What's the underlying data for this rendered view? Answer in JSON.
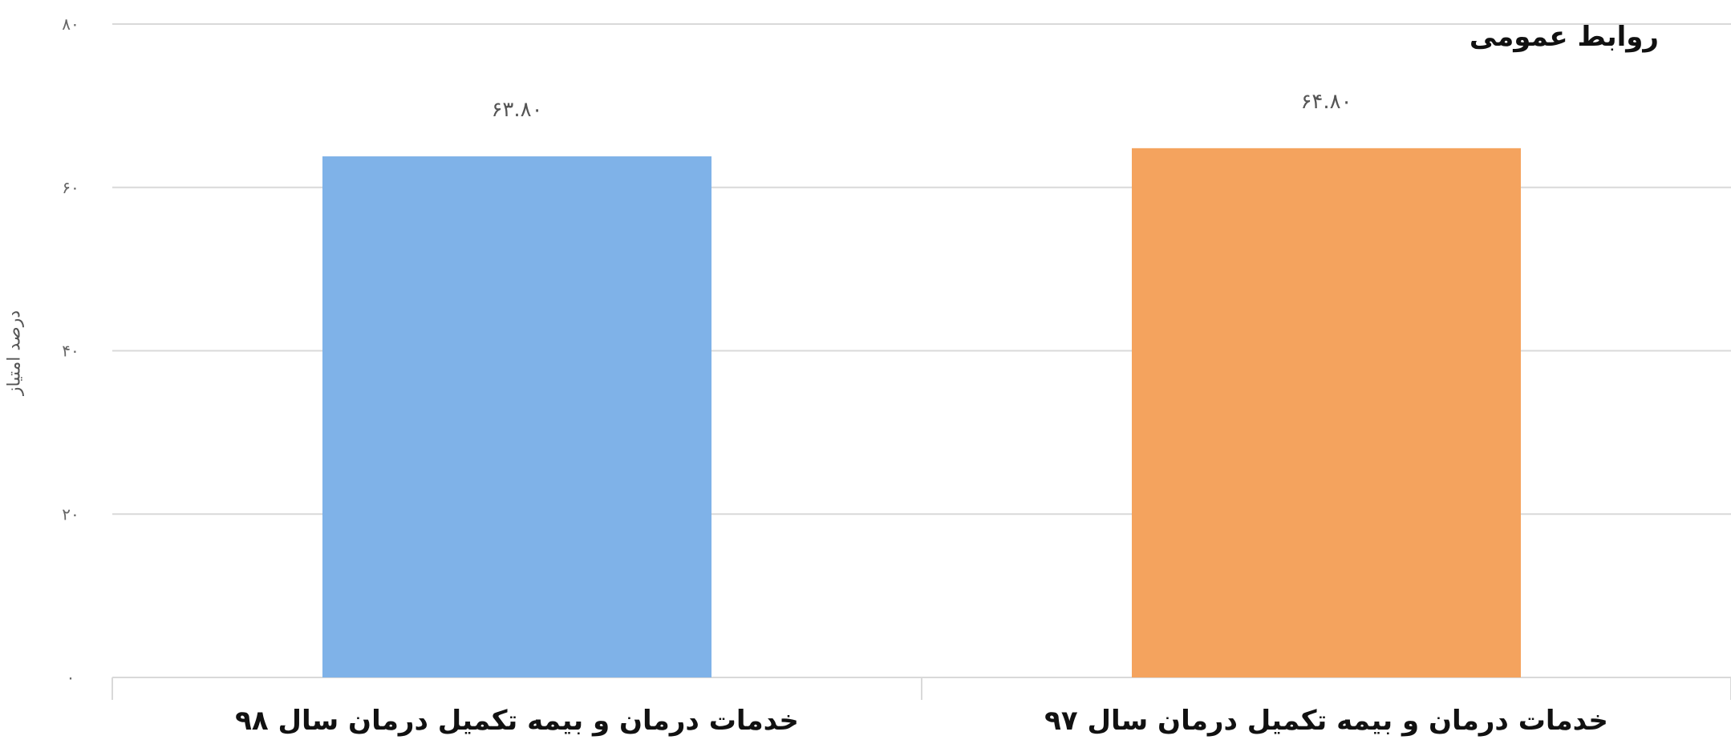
{
  "header": {
    "source": "روابط عمومی"
  },
  "chart_data": {
    "type": "bar",
    "categories": [
      "خدمات درمان و بیمه تکمیل درمان سال ۹۸",
      "خدمات درمان و بیمه تکمیل درمان سال ۹۷"
    ],
    "values": [
      63.8,
      64.8
    ],
    "value_labels": [
      "۶۳.۸۰",
      "۶۴.۸۰"
    ],
    "colors": [
      "#7fb2e8",
      "#f4a35e"
    ],
    "ylabel": "درصد امتیاز",
    "ylim": [
      0,
      80
    ],
    "yticks": [
      0,
      20,
      40,
      60,
      80
    ],
    "ytick_labels": [
      "۰",
      "۲۰",
      "۴۰",
      "۶۰",
      "۸۰"
    ],
    "grid": true
  }
}
